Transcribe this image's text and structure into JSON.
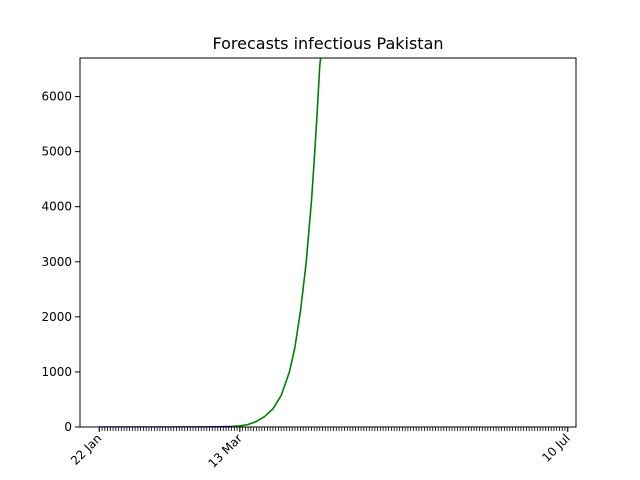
{
  "chart_data": {
    "type": "line",
    "title": "Forecasts infectious Pakistan",
    "xlabel": "",
    "ylabel": "",
    "x_axis": {
      "type": "date",
      "range": [
        "2020-01-15",
        "2020-07-13"
      ],
      "tick_labels": [
        {
          "date": "2020-01-22",
          "label": "22 Jan"
        },
        {
          "date": "2020-03-13",
          "label": "13 Mar"
        },
        {
          "date": "2020-07-10",
          "label": "10 Jul"
        }
      ],
      "minor_ticks": "daily"
    },
    "ylim": [
      0,
      6700
    ],
    "y_ticks": [
      0,
      1000,
      2000,
      3000,
      4000,
      5000,
      6000
    ],
    "grid": false,
    "series": [
      {
        "color": "#0000aa",
        "x": [
          "2020-01-22",
          "2020-02-15",
          "2020-03-01",
          "2020-03-08",
          "2020-03-13"
        ],
        "y": [
          0,
          0,
          2,
          5,
          10
        ]
      },
      {
        "color": "#008000",
        "x": [
          "2020-03-10",
          "2020-03-13",
          "2020-03-16",
          "2020-03-19",
          "2020-03-22",
          "2020-03-25",
          "2020-03-28",
          "2020-03-31",
          "2020-04-02",
          "2020-04-04",
          "2020-04-06",
          "2020-04-08",
          "2020-04-09",
          "2020-04-10",
          "2020-04-11",
          "2020-04-12"
        ],
        "y": [
          10,
          20,
          45,
          100,
          190,
          330,
          570,
          1000,
          1450,
          2100,
          2950,
          4100,
          4850,
          5650,
          6550,
          7000
        ]
      }
    ]
  }
}
